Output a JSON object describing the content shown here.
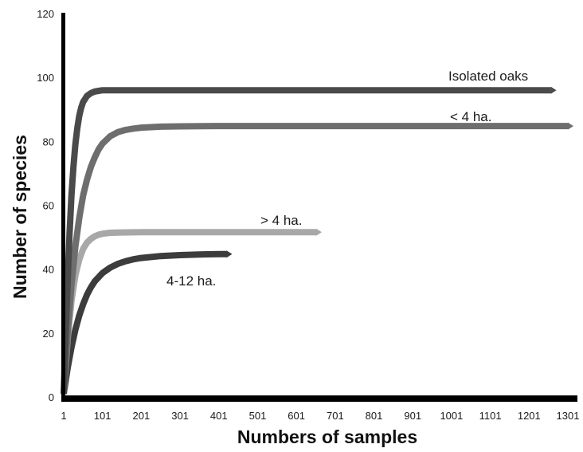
{
  "chart_data": {
    "type": "line",
    "xlabel": "Numbers of samples",
    "ylabel": "Number of species",
    "xlim": [
      1,
      1301
    ],
    "ylim": [
      0,
      120
    ],
    "x_ticks": [
      "1",
      "101",
      "201",
      "301",
      "401",
      "501",
      "601",
      "701",
      "801",
      "901",
      "1001",
      "1101",
      "1201",
      "1301"
    ],
    "y_ticks": [
      "0",
      "20",
      "40",
      "60",
      "80",
      "100",
      "120"
    ],
    "grid": false,
    "legend": "none",
    "series": [
      {
        "name": "Isolated oaks",
        "color": "#4a4a4a",
        "x": [
          1,
          6,
          11,
          16,
          21,
          26,
          31,
          36,
          41,
          46,
          51,
          61,
          71,
          81,
          91,
          101,
          121,
          151,
          201,
          301,
          401,
          501,
          601,
          701,
          801,
          901,
          1001,
          1101,
          1201,
          1257
        ],
        "y": [
          1,
          19,
          36,
          51,
          63,
          72,
          79,
          84,
          88,
          90.5,
          92.3,
          94.2,
          95.1,
          95.6,
          95.8,
          96,
          96,
          96,
          96,
          96,
          96,
          96,
          96,
          96,
          96,
          96,
          96,
          96,
          96,
          96
        ]
      },
      {
        "name": "< 4 ha.",
        "color": "#6e6e6e",
        "x": [
          1,
          11,
          21,
          31,
          41,
          51,
          61,
          71,
          81,
          91,
          101,
          121,
          141,
          161,
          181,
          201,
          251,
          301,
          401,
          501,
          601,
          701,
          801,
          901,
          1001,
          1101,
          1201,
          1301
        ],
        "y": [
          1,
          20,
          35,
          47,
          56,
          63,
          68,
          72,
          75,
          77.5,
          79.3,
          81.6,
          82.9,
          83.6,
          84,
          84.3,
          84.6,
          84.7,
          84.8,
          84.8,
          84.8,
          84.8,
          84.8,
          84.8,
          84.8,
          84.8,
          84.8,
          84.8
        ]
      },
      {
        "name": "> 4 ha.",
        "color": "#a8a8a8",
        "x": [
          1,
          11,
          21,
          31,
          41,
          51,
          61,
          71,
          81,
          91,
          101,
          121,
          151,
          201,
          251,
          301,
          401,
          501,
          601,
          652
        ],
        "y": [
          1,
          18,
          30,
          38,
          43,
          46.3,
          48.3,
          49.5,
          50.3,
          50.8,
          51.1,
          51.4,
          51.5,
          51.6,
          51.6,
          51.6,
          51.6,
          51.6,
          51.6,
          51.6
        ]
      },
      {
        "name": "4-12 ha.",
        "color": "#3c3c3c",
        "x": [
          1,
          11,
          21,
          31,
          41,
          51,
          61,
          71,
          81,
          101,
          121,
          141,
          161,
          181,
          201,
          251,
          301,
          351,
          401,
          421
        ],
        "y": [
          1,
          9,
          15.5,
          21,
          25.5,
          29,
          32,
          34.3,
          36.2,
          38.8,
          40.5,
          41.7,
          42.5,
          43.1,
          43.5,
          44.1,
          44.4,
          44.6,
          44.7,
          44.7
        ]
      }
    ]
  }
}
